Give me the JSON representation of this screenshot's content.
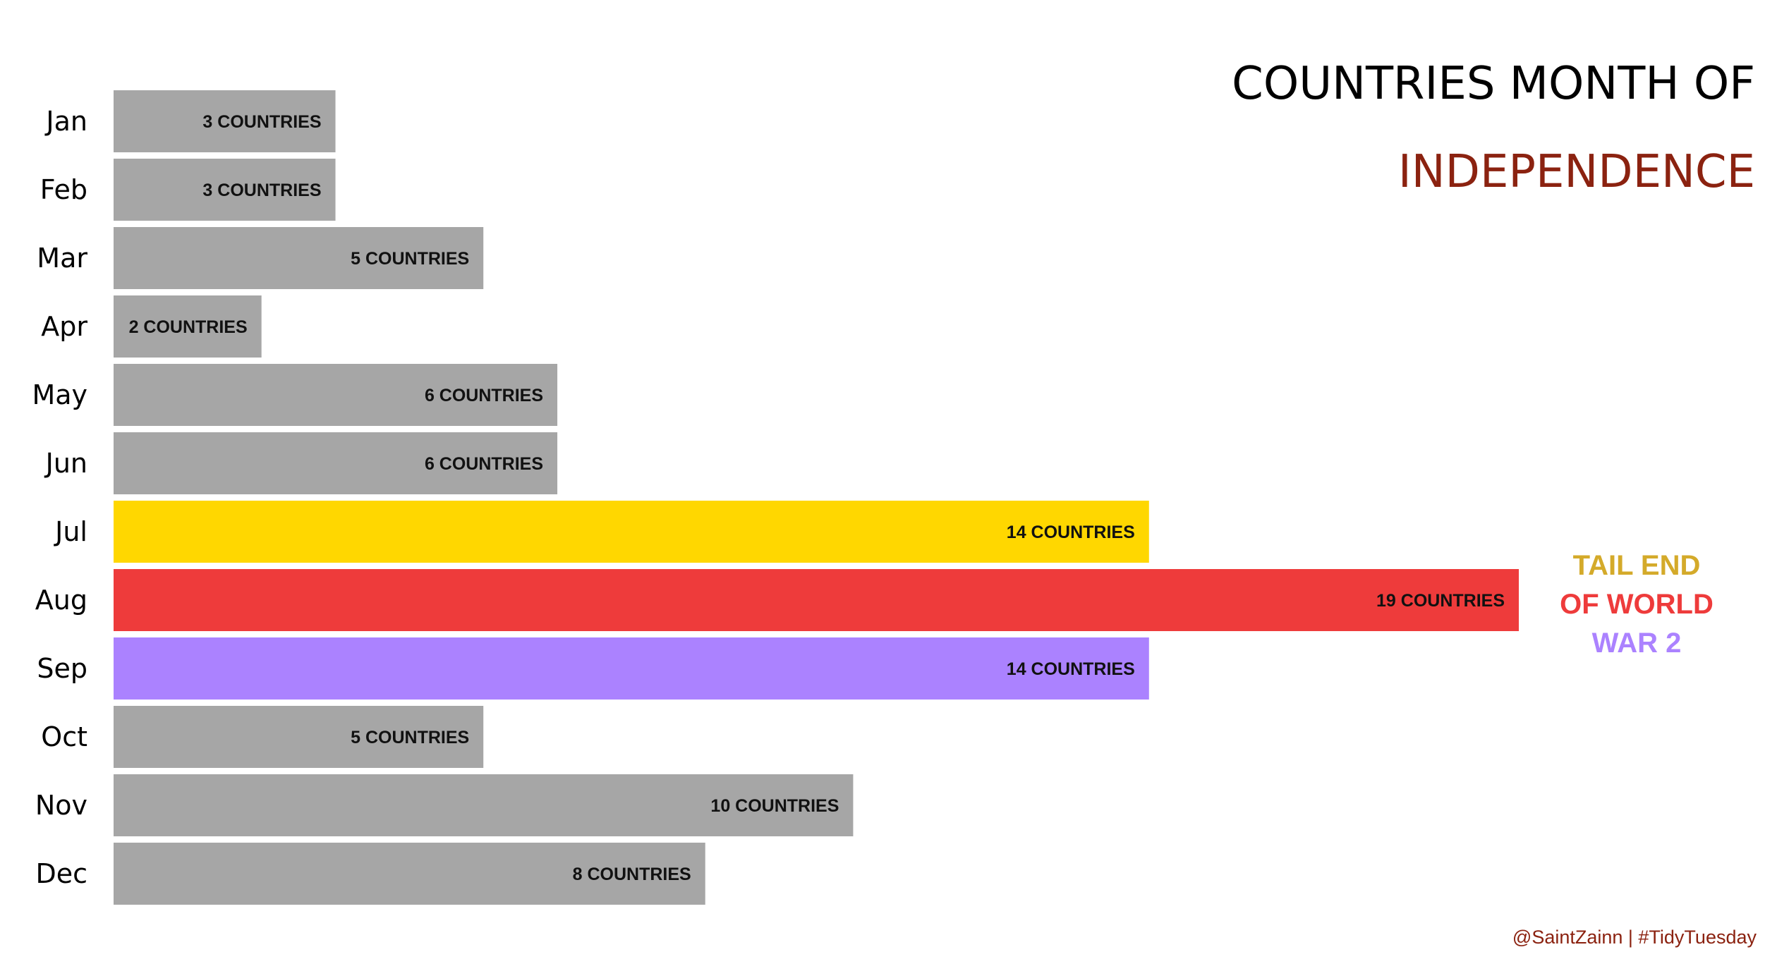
{
  "chart_data": {
    "type": "bar",
    "orientation": "horizontal",
    "title_line1": "COUNTRIES MONTH OF",
    "title_line2": "INDEPENDENCE",
    "categories": [
      "Jan",
      "Feb",
      "Mar",
      "Apr",
      "May",
      "Jun",
      "Jul",
      "Aug",
      "Sep",
      "Oct",
      "Nov",
      "Dec"
    ],
    "values": [
      3,
      3,
      5,
      2,
      6,
      6,
      14,
      19,
      14,
      5,
      10,
      8
    ],
    "bar_labels": [
      "3 COUNTRIES",
      "3 COUNTRIES",
      "5 COUNTRIES",
      "2 COUNTRIES",
      "6 COUNTRIES",
      "6 COUNTRIES",
      "14 COUNTRIES",
      "19 COUNTRIES",
      "14 COUNTRIES",
      "5 COUNTRIES",
      "10 COUNTRIES",
      "8 COUNTRIES"
    ],
    "bar_colors": [
      "#a6a6a6",
      "#a6a6a6",
      "#a6a6a6",
      "#a6a6a6",
      "#a6a6a6",
      "#a6a6a6",
      "#ffd700",
      "#ee3b3b",
      "#ab82ff",
      "#a6a6a6",
      "#a6a6a6",
      "#a6a6a6"
    ],
    "xlim": [
      0,
      19
    ],
    "grid": false,
    "annotation": {
      "lines": [
        "TAIL END",
        "OF WORLD",
        "WAR 2"
      ],
      "colors": [
        "#d4aa2a",
        "#ee3b3b",
        "#ab82ff"
      ]
    },
    "caption": "@SaintZainn | #TidyTuesday"
  },
  "colors": {
    "title_primary": "#000000",
    "title_accent": "#8b2210",
    "caption": "#8b2210",
    "label_text": "#111111"
  }
}
